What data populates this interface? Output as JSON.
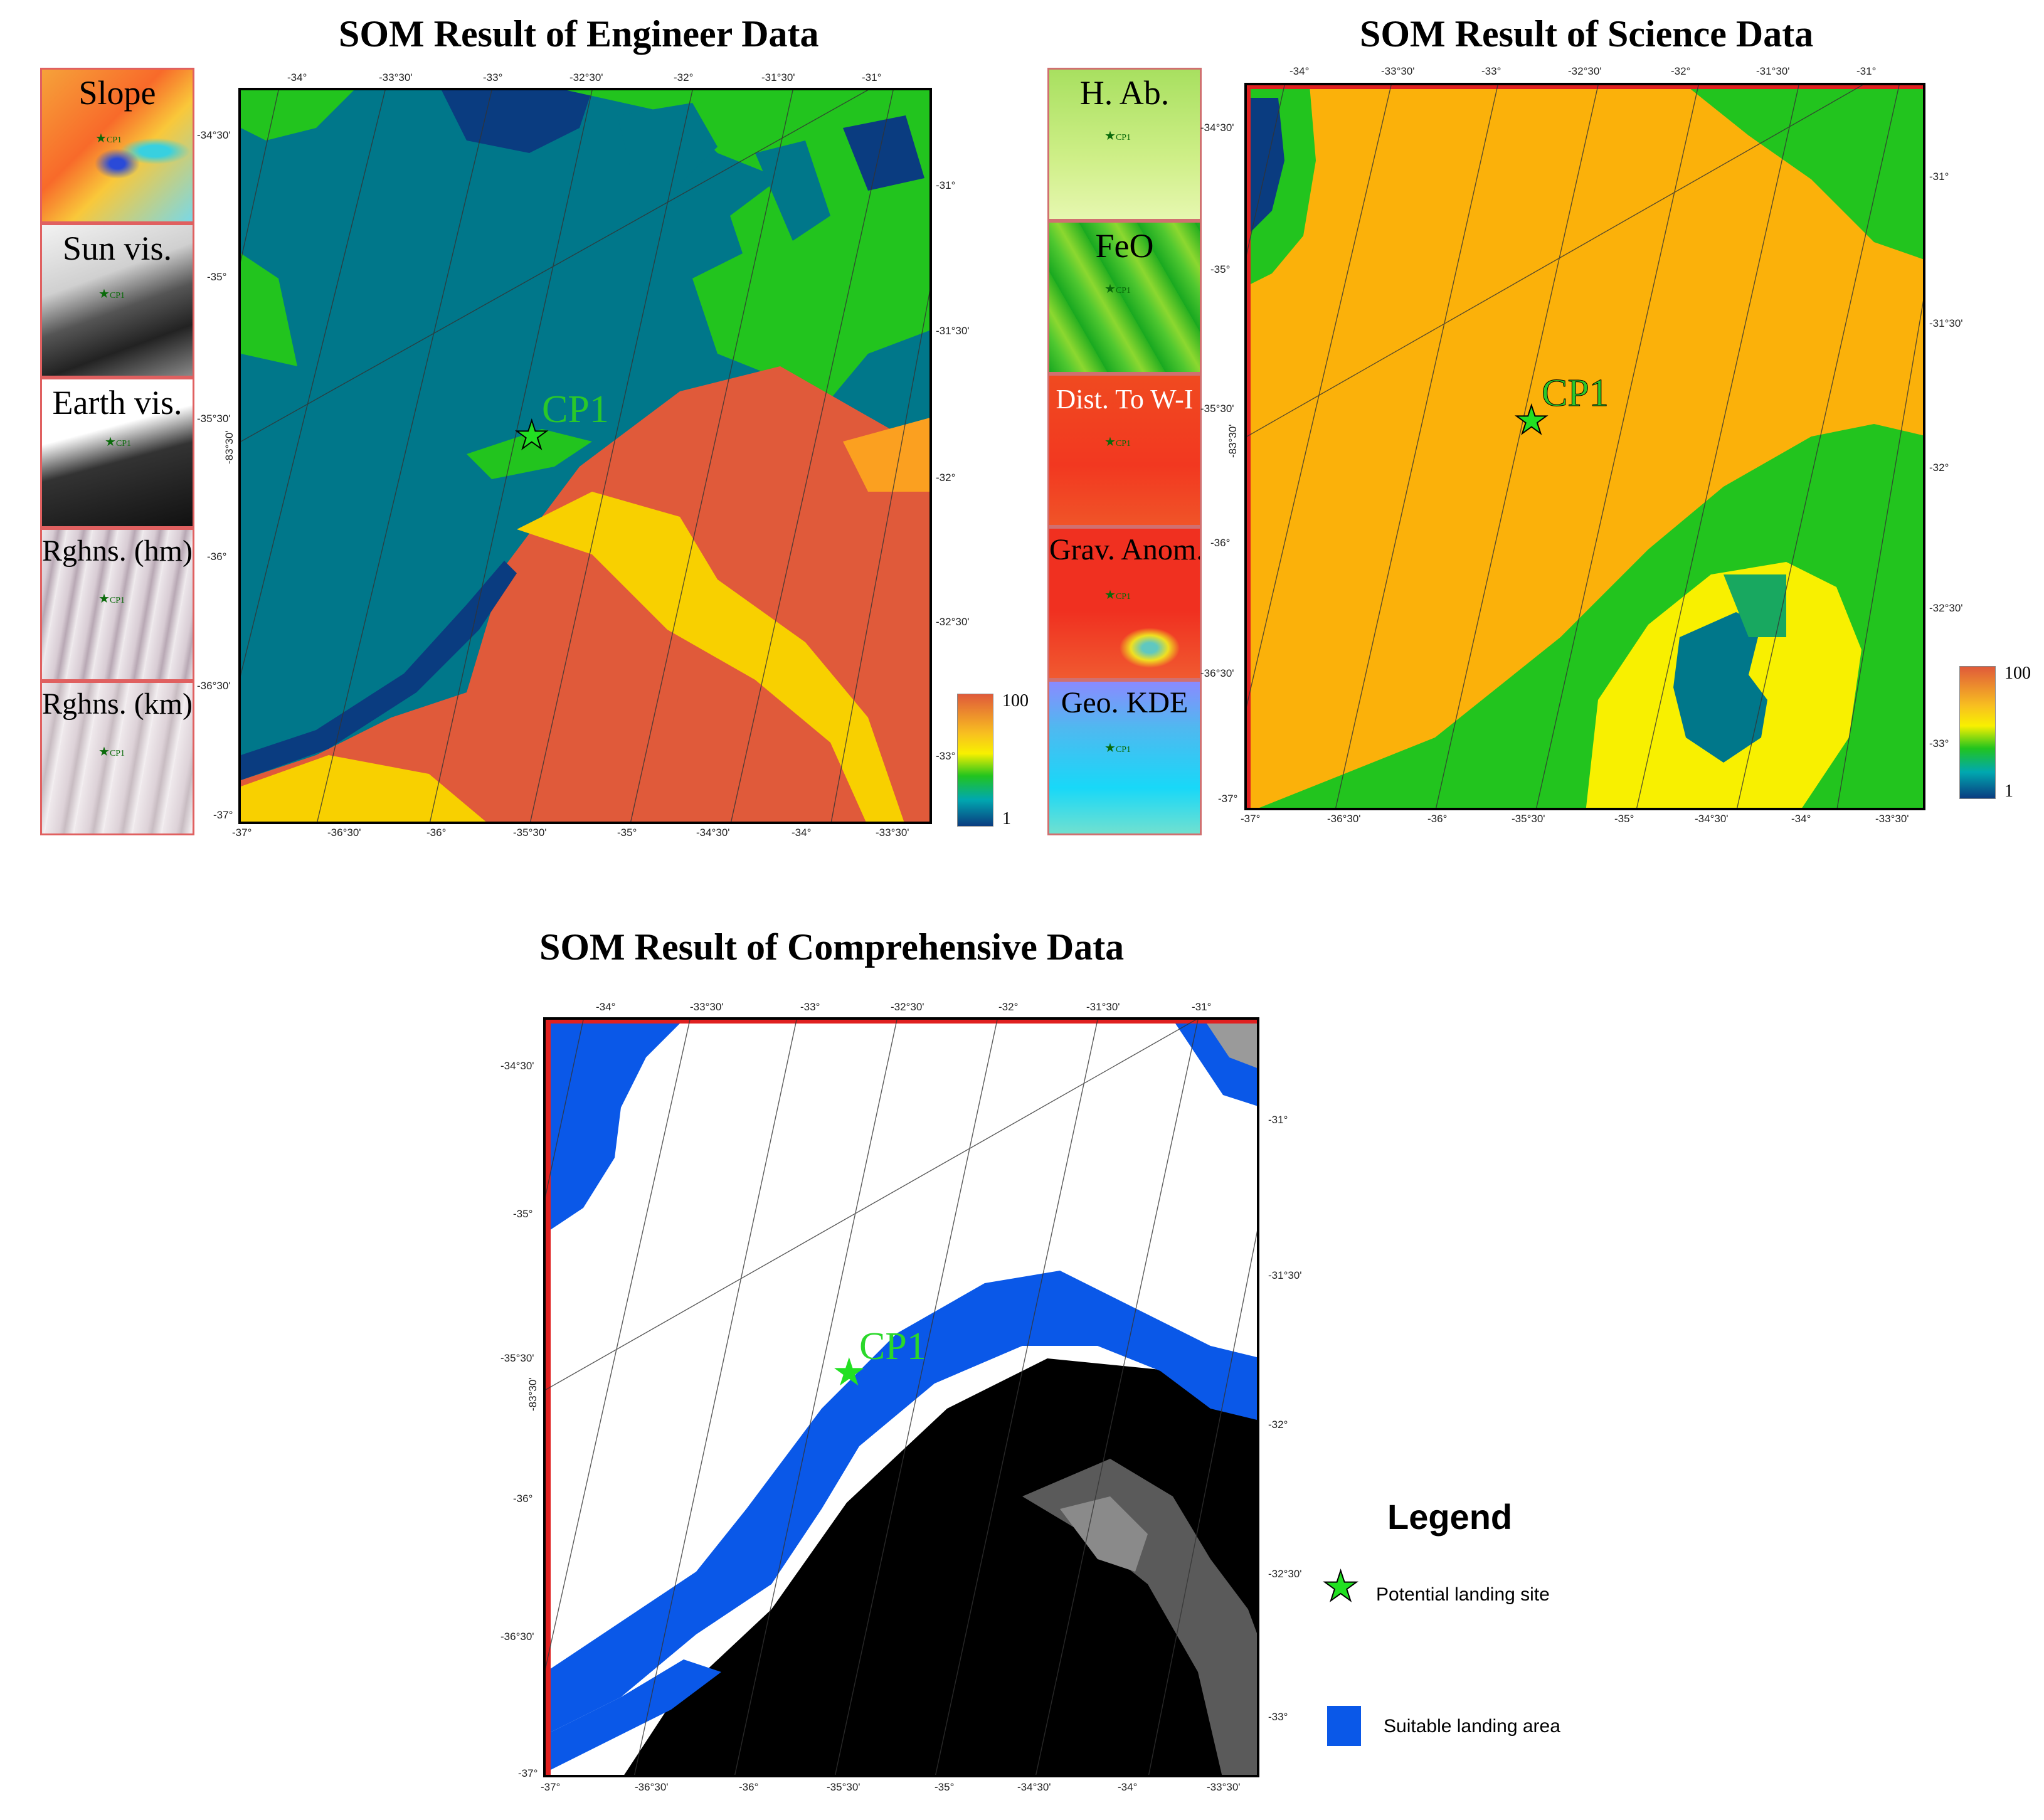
{
  "titles": {
    "engineer": "SOM Result of Engineer Data",
    "science": "SOM Result of Science Data",
    "comprehensive": "SOM Result of Comprehensive Data"
  },
  "engineer_layers": [
    "Slope",
    "Sun vis.",
    "Earth vis.",
    "Rghns. (hm)",
    "Rghns. (km)"
  ],
  "science_layers": [
    "H. Ab.",
    "FeO",
    "Dist. To W-I",
    "Grav. Anom.",
    "Geo. KDE"
  ],
  "thumb_site_label": "CP1",
  "site_label": "CP1",
  "colorbar": {
    "max": "100",
    "min": "1"
  },
  "map_ticks": {
    "engineer": {
      "top": [
        "-34°",
        "-33°30'",
        "-33°",
        "-32°30'",
        "-32°",
        "-31°30'",
        "-31°"
      ],
      "bottom": [
        "-37°",
        "-36°30'",
        "-36°",
        "-35°30'",
        "-35°",
        "-34°30'",
        "-34°",
        "-33°30'"
      ],
      "left": [
        "-34°30'",
        "-35°",
        "-35°30'",
        "-36°",
        "-36°30'",
        "-37°"
      ],
      "right": [
        "-31°",
        "-31°30'",
        "-32°",
        "-32°30'",
        "-33°"
      ],
      "lat": "-83°30'"
    },
    "science": {
      "top": [
        "-34°",
        "-33°30'",
        "-33°",
        "-32°30'",
        "-32°",
        "-31°30'",
        "-31°"
      ],
      "bottom": [
        "-37°",
        "-36°30'",
        "-36°",
        "-35°30'",
        "-35°",
        "-34°30'",
        "-34°",
        "-33°30'"
      ],
      "left": [
        "-34°30'",
        "-35°",
        "-35°30'",
        "-36°",
        "-36°30'",
        "-37°"
      ],
      "right": [
        "-31°",
        "-31°30'",
        "-32°",
        "-32°30'",
        "-33°"
      ],
      "lat": "-83°30'"
    },
    "comprehensive": {
      "top": [
        "-34°",
        "-33°30'",
        "-33°",
        "-32°30'",
        "-32°",
        "-31°30'",
        "-31°"
      ],
      "bottom": [
        "-37°",
        "-36°30'",
        "-36°",
        "-35°30'",
        "-35°",
        "-34°30'",
        "-34°",
        "-33°30'"
      ],
      "left": [
        "-34°30'",
        "-35°",
        "-35°30'",
        "-36°",
        "-36°30'",
        "-37°"
      ],
      "right": [
        "-31°",
        "-31°30'",
        "-32°",
        "-32°30'",
        "-33°"
      ],
      "lat": "-83°30'"
    }
  },
  "legend": {
    "title": "Legend",
    "site": "Potential landing site",
    "area": "Suitable landing area"
  },
  "colors": {
    "high": "#e05a3a",
    "mid": "#f8d000",
    "green": "#22c41e",
    "low": "#0a3c80",
    "teal": "#00778a",
    "orange": "#fbb10a",
    "suitable": "#0a58e8",
    "star": "#22e022",
    "frame_red": "#e02020"
  }
}
